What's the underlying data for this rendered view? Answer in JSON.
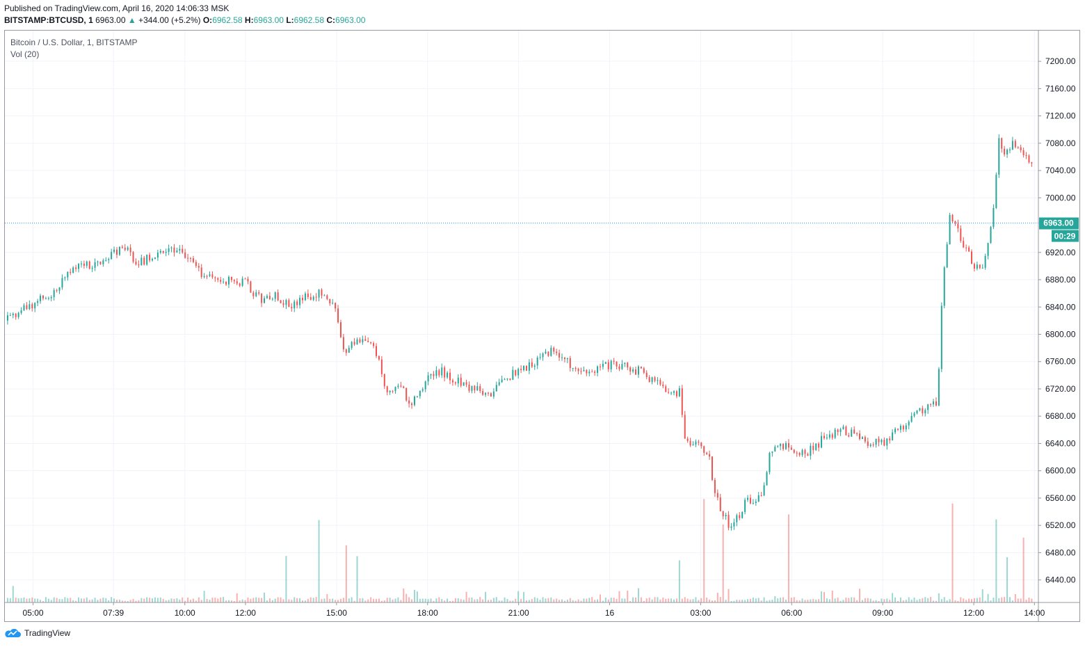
{
  "header": {
    "published": "Published on TradingView.com, April 16, 2020 14:06:33 MSK",
    "symbol": "BITSTAMP:BTCUSD, 1",
    "last": "6963.00",
    "change_arrow": "▲",
    "change": "+344.00 (+5.2%)",
    "open_label": "O:",
    "open": "6962.58",
    "high_label": "H:",
    "high": "6963.00",
    "low_label": "L:",
    "low": "6962.58",
    "close_label": "C:",
    "close": "6963.00"
  },
  "legend": {
    "title": "Bitcoin / U.S. Dollar, 1, BITSTAMP",
    "volume": "Vol (20)"
  },
  "footer": {
    "brand": "TradingView",
    "logo_icon": "tradingview-cloud-icon"
  },
  "colors": {
    "up": "#26a69a",
    "down": "#ef5350",
    "grid": "#f0f3fa",
    "axis_text": "#131722",
    "price_line": "#2196f3",
    "price_label_bg": "#26a69a"
  },
  "chart_data": {
    "type": "candlestick",
    "title": "Bitcoin / U.S. Dollar, 1, BITSTAMP",
    "price_ticks": [
      7200,
      7160,
      7120,
      7080,
      7040,
      7000,
      6920,
      6880,
      6840,
      6800,
      6760,
      6720,
      6680,
      6640,
      6600,
      6560,
      6520,
      6480,
      6440
    ],
    "price_tick_labels": [
      "7200.00",
      "7160.00",
      "7120.00",
      "7080.00",
      "7040.00",
      "7000.00",
      "6920.00",
      "6880.00",
      "6840.00",
      "6800.00",
      "6760.00",
      "6720.00",
      "6680.00",
      "6640.00",
      "6600.00",
      "6560.00",
      "6520.00",
      "6480.00",
      "6440.00"
    ],
    "time_labels": [
      "05:00",
      "07:39",
      "10:00",
      "12:00",
      "15:00",
      "18:00",
      "21:00",
      "16",
      "03:00",
      "06:00",
      "09:00",
      "12:00",
      "14:00"
    ],
    "time_label_hours": [
      0,
      2.65,
      5,
      7,
      10,
      13,
      16,
      19,
      22,
      25,
      28,
      31,
      33
    ],
    "time_range_hours": [
      -0.93,
      33.13
    ],
    "price_range": [
      6407,
      7245
    ],
    "last_price": 6963.0,
    "last_price_label": "6963.00",
    "countdown": "00:29",
    "close_path": [
      [
        -0.93,
        6820
      ],
      [
        0,
        6845
      ],
      [
        0.5,
        6855
      ],
      [
        1,
        6880
      ],
      [
        1.5,
        6905
      ],
      [
        2,
        6900
      ],
      [
        2.5,
        6915
      ],
      [
        3,
        6925
      ],
      [
        3.5,
        6905
      ],
      [
        4,
        6915
      ],
      [
        4.5,
        6930
      ],
      [
        5,
        6915
      ],
      [
        5.5,
        6890
      ],
      [
        6,
        6880
      ],
      [
        6.5,
        6880
      ],
      [
        7,
        6875
      ],
      [
        7.5,
        6850
      ],
      [
        8,
        6855
      ],
      [
        8.5,
        6840
      ],
      [
        9,
        6855
      ],
      [
        9.5,
        6860
      ],
      [
        10,
        6840
      ],
      [
        10.2,
        6770
      ],
      [
        10.5,
        6790
      ],
      [
        11,
        6785
      ],
      [
        11.3,
        6775
      ],
      [
        11.6,
        6720
      ],
      [
        12,
        6725
      ],
      [
        12.5,
        6700
      ],
      [
        13,
        6735
      ],
      [
        13.5,
        6745
      ],
      [
        14,
        6730
      ],
      [
        14.5,
        6720
      ],
      [
        15,
        6710
      ],
      [
        15.5,
        6735
      ],
      [
        16,
        6745
      ],
      [
        16.5,
        6760
      ],
      [
        17,
        6775
      ],
      [
        17.5,
        6765
      ],
      [
        18,
        6740
      ],
      [
        18.5,
        6745
      ],
      [
        19,
        6755
      ],
      [
        19.5,
        6755
      ],
      [
        20,
        6745
      ],
      [
        20.5,
        6730
      ],
      [
        21,
        6715
      ],
      [
        21.3,
        6715
      ],
      [
        21.5,
        6640
      ],
      [
        22,
        6635
      ],
      [
        22.3,
        6615
      ],
      [
        22.5,
        6560
      ],
      [
        22.8,
        6535
      ],
      [
        23,
        6515
      ],
      [
        23.5,
        6555
      ],
      [
        24,
        6560
      ],
      [
        24.3,
        6630
      ],
      [
        24.5,
        6640
      ],
      [
        25,
        6630
      ],
      [
        25.5,
        6625
      ],
      [
        26,
        6645
      ],
      [
        26.5,
        6660
      ],
      [
        27,
        6655
      ],
      [
        27.5,
        6640
      ],
      [
        28,
        6640
      ],
      [
        28.5,
        6660
      ],
      [
        29,
        6680
      ],
      [
        29.5,
        6695
      ],
      [
        29.8,
        6700
      ],
      [
        29.9,
        6810
      ],
      [
        30,
        6880
      ],
      [
        30.2,
        6970
      ],
      [
        30.5,
        6950
      ],
      [
        31,
        6900
      ],
      [
        31.3,
        6895
      ],
      [
        31.5,
        6940
      ],
      [
        31.7,
        7000
      ],
      [
        31.8,
        7090
      ],
      [
        32,
        7070
      ],
      [
        32.3,
        7080
      ],
      [
        32.6,
        7065
      ],
      [
        32.8,
        7050
      ],
      [
        33,
        7060
      ],
      [
        33.1,
        7050
      ],
      [
        33.3,
        7035
      ],
      [
        33.6,
        7045
      ],
      [
        34,
        7060
      ],
      [
        34.3,
        7040
      ],
      [
        34.35,
        6990
      ],
      [
        34.5,
        6955
      ],
      [
        34.8,
        6960
      ]
    ],
    "volume_spikes_hours": [
      8.35,
      9.45,
      10.3,
      10.7,
      21.3,
      22.1,
      22.7,
      24.9,
      30.3,
      31.7,
      32.1,
      32.6
    ]
  }
}
